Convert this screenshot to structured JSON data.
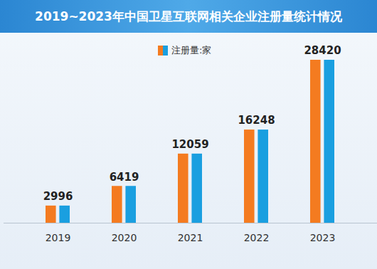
{
  "chart_data": {
    "type": "bar",
    "title": "2019~2023年中国卫星互联网相关企业注册量统计情况",
    "categories": [
      "2019",
      "2020",
      "2021",
      "2022",
      "2023"
    ],
    "series": [
      {
        "name": "注册量:家",
        "color": "#f47b20",
        "values": [
          2996,
          6419,
          12059,
          16248,
          28420
        ]
      }
    ],
    "ylim": [
      0,
      28420
    ],
    "data_labels": true,
    "tick_labels": "x",
    "grid": false
  }
}
